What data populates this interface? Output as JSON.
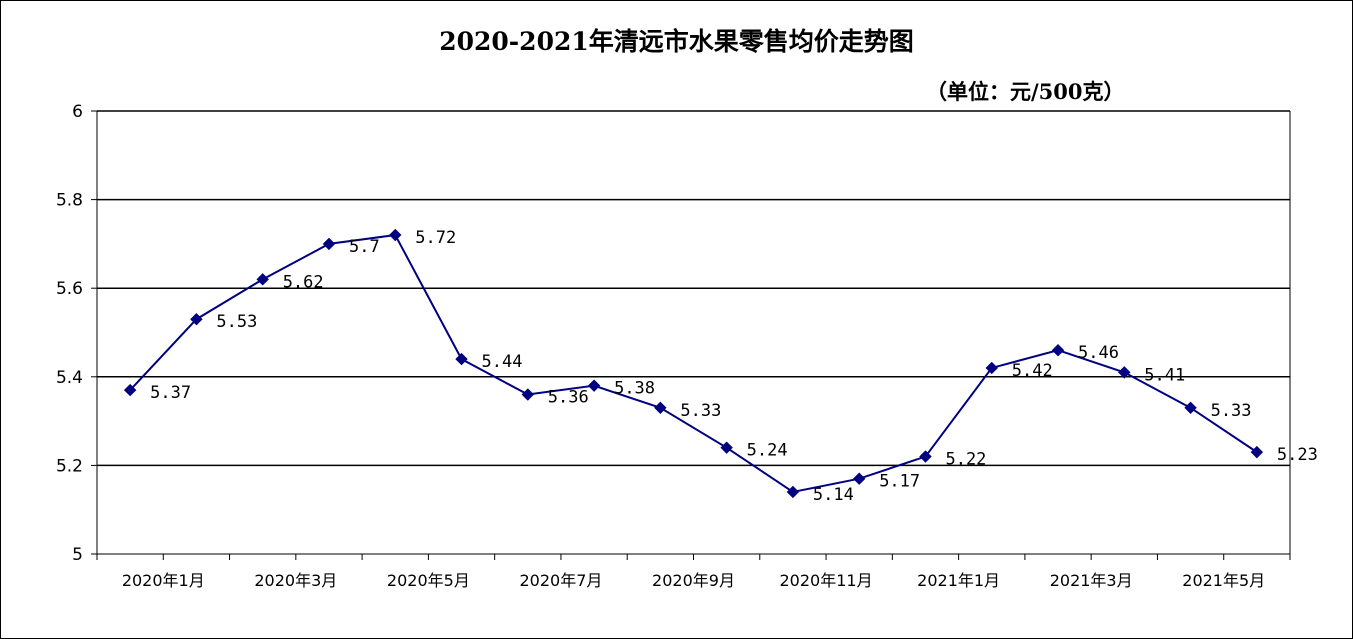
{
  "chart_data": {
    "type": "line",
    "title": "2020-2021年清远市水果零售均价走势图",
    "unit": "（单位：元/500克）",
    "xlabel": "",
    "ylabel": "",
    "ylim": [
      5,
      6
    ],
    "yticks": [
      "5",
      "5.2",
      "5.4",
      "5.6",
      "5.8",
      "6"
    ],
    "ytick_values": [
      5,
      5.2,
      5.4,
      5.6,
      5.8,
      6
    ],
    "grid": true,
    "legend": "none",
    "x_tick_labels": [
      "2020年1月",
      "2020年3月",
      "2020年5月",
      "2020年7月",
      "2020年9月",
      "2020年11月",
      "2021年1月",
      "2021年3月",
      "2021年5月"
    ],
    "categories": [
      "2020年1月",
      "2020年2月",
      "2020年3月",
      "2020年4月",
      "2020年5月",
      "2020年6月",
      "2020年7月",
      "2020年8月",
      "2020年9月",
      "2020年10月",
      "2020年11月",
      "2020年12月",
      "2021年1月",
      "2021年2月",
      "2021年3月",
      "2021年4月",
      "2021年5月",
      "2021年6月"
    ],
    "series": [
      {
        "values": [
          5.37,
          5.53,
          5.62,
          5.7,
          5.72,
          5.44,
          5.36,
          5.38,
          5.33,
          5.24,
          5.14,
          5.17,
          5.22,
          5.42,
          5.46,
          5.41,
          5.33,
          5.23
        ],
        "data_labels": [
          "5.37",
          "5.53",
          "5.62",
          "5.7",
          "5.72",
          "5.44",
          "5.36",
          "5.38",
          "5.33",
          "5.24",
          "5.14",
          "5.17",
          "5.22",
          "5.42",
          "5.46",
          "5.41",
          "5.33",
          "5.23"
        ],
        "color": "#000080",
        "marker": "diamond"
      }
    ]
  }
}
